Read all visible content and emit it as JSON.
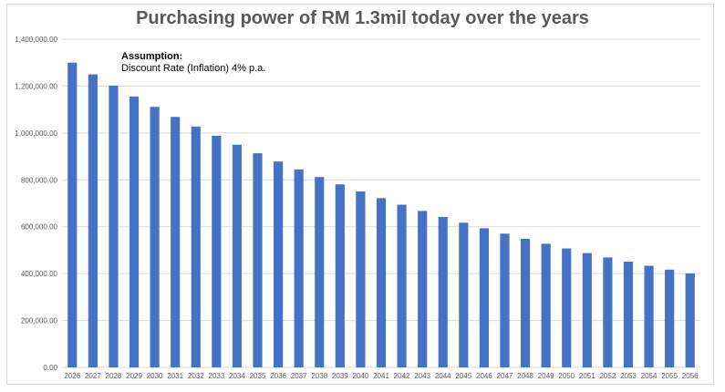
{
  "chart_data": {
    "type": "bar",
    "title": "Purchasing power of RM 1.3mil today over the years",
    "xlabel": "",
    "ylabel": "",
    "ylim": [
      0,
      1400000
    ],
    "yticks": [
      "0.00",
      "200,000.00",
      "400,000.00",
      "600,000.00",
      "800,000.00",
      "1,000,000.00",
      "1,200,000.00",
      "1,400,000.00"
    ],
    "grid": true,
    "legend": "none",
    "bar_color": "#4472c4",
    "annotation": {
      "heading": "Assumption:",
      "text": "Discount Rate (Inflation) 4% p.a."
    },
    "categories": [
      "2026",
      "2027",
      "2028",
      "2029",
      "2030",
      "2031",
      "2032",
      "2033",
      "2034",
      "2035",
      "2036",
      "2037",
      "2038",
      "2039",
      "2040",
      "2041",
      "2042",
      "2043",
      "2044",
      "2045",
      "2046",
      "2047",
      "2048",
      "2049",
      "2050",
      "2051",
      "2052",
      "2053",
      "2054",
      "2055",
      "2056"
    ],
    "values": [
      1300000,
      1250000,
      1201923,
      1155695,
      1111245,
      1068505,
      1027409,
      987893,
      949897,
      913363,
      878233,
      844455,
      811976,
      780746,
      750718,
      721844,
      694080,
      667385,
      641716,
      617035,
      593303,
      570483,
      548541,
      527444,
      507157,
      487651,
      468895,
      450861,
      433520,
      416846,
      400814
    ]
  }
}
